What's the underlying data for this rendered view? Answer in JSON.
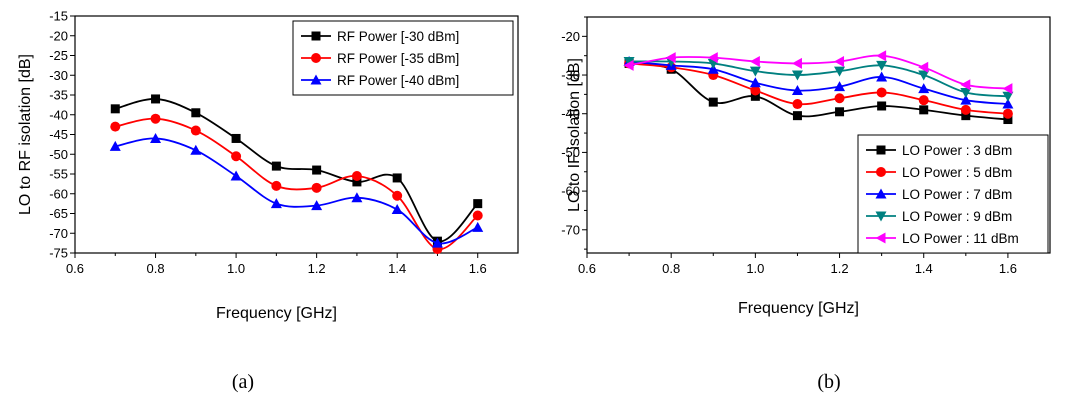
{
  "chart_data": [
    {
      "type": "line",
      "caption": "(a)",
      "xlabel": "Frequency [GHz]",
      "ylabel": "LO to RF isolation [dB]",
      "xlim": [
        0.6,
        1.7
      ],
      "ylim": [
        -75,
        -15
      ],
      "xticks": [
        0.6,
        0.8,
        1.0,
        1.2,
        1.4,
        1.6
      ],
      "xtick_labels": [
        "0.6",
        "0.8",
        "1.0",
        "1.2",
        "1.4",
        "1.6"
      ],
      "yticks": [
        -75,
        -70,
        -65,
        -60,
        -55,
        -50,
        -45,
        -40,
        -35,
        -30,
        -25,
        -20,
        -15
      ],
      "ytick_labels": [
        "-75",
        "-70",
        "-65",
        "-60",
        "-55",
        "-50",
        "-45",
        "-40",
        "-35",
        "-30",
        "-25",
        "-20",
        "-15"
      ],
      "legend_position": "top-right",
      "x": [
        0.7,
        0.8,
        0.9,
        1.0,
        1.1,
        1.2,
        1.3,
        1.4,
        1.5,
        1.6
      ],
      "series": [
        {
          "name": "RF Power [-30 dBm]",
          "color": "#000000",
          "marker": "square",
          "values": [
            -38.5,
            -36,
            -39.5,
            -46,
            -53,
            -54,
            -57,
            -56,
            -72,
            -62.5
          ]
        },
        {
          "name": "RF Power [-35 dBm]",
          "color": "#ff0000",
          "marker": "circle",
          "values": [
            -43,
            -41,
            -44,
            -50.5,
            -58,
            -58.5,
            -55.5,
            -60.5,
            -74,
            -65.5
          ]
        },
        {
          "name": "RF Power [-40 dBm]",
          "color": "#0000ff",
          "marker": "triangle-up",
          "values": [
            -48,
            -46,
            -49,
            -55.5,
            -62.5,
            -63,
            -61,
            -64,
            -72.5,
            -68.5
          ]
        }
      ]
    },
    {
      "type": "line",
      "caption": "(b)",
      "xlabel": "Frequency [GHz]",
      "ylabel": "LO to IF isolation [dB]",
      "xlim": [
        0.6,
        1.7
      ],
      "ylim": [
        -76,
        -15
      ],
      "xticks": [
        0.6,
        0.8,
        1.0,
        1.2,
        1.4,
        1.6
      ],
      "xtick_labels": [
        "0.6",
        "0.8",
        "1.0",
        "1.2",
        "1.4",
        "1.6"
      ],
      "yticks": [
        -70,
        -60,
        -50,
        -40,
        -30,
        -20
      ],
      "ytick_labels": [
        "-70",
        "-60",
        "-50",
        "-40",
        "-30",
        "-20"
      ],
      "legend_position": "bottom-right",
      "x": [
        0.7,
        0.8,
        0.9,
        1.0,
        1.1,
        1.2,
        1.3,
        1.4,
        1.5,
        1.6
      ],
      "series": [
        {
          "name": "LO Power : 3 dBm",
          "color": "#000000",
          "marker": "square",
          "values": [
            -27,
            -28.5,
            -37,
            -35.5,
            -40.5,
            -39.5,
            -38,
            -39,
            -40.5,
            -41.5
          ]
        },
        {
          "name": "LO Power : 5 dBm",
          "color": "#ff0000",
          "marker": "circle",
          "values": [
            -27,
            -28,
            -30,
            -34,
            -37.5,
            -36,
            -34.5,
            -36.5,
            -39,
            -40
          ]
        },
        {
          "name": "LO Power : 7 dBm",
          "color": "#0000ff",
          "marker": "triangle-up",
          "values": [
            -26.5,
            -27.5,
            -28.5,
            -32,
            -34,
            -33,
            -30.5,
            -33.5,
            -36.5,
            -37.5
          ]
        },
        {
          "name": "LO Power : 9 dBm",
          "color": "#008080",
          "marker": "triangle-down",
          "values": [
            -26.5,
            -26.5,
            -27,
            -29,
            -30,
            -29,
            -27.5,
            -30,
            -34.5,
            -35.5
          ]
        },
        {
          "name": "LO Power : 11 dBm",
          "color": "#ff00ff",
          "marker": "triangle-left",
          "values": [
            -27.5,
            -25.5,
            -25.5,
            -26.5,
            -27,
            -26.5,
            -25,
            -28,
            -32.5,
            -33.5
          ]
        }
      ]
    }
  ]
}
